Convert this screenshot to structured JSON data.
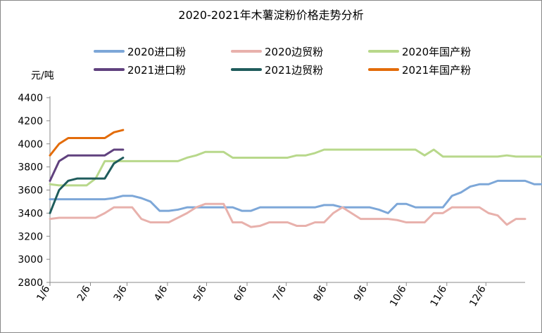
{
  "chart_data": {
    "type": "line",
    "title": "2020-2021年木薯淀粉价格走势分析",
    "ylabel": "元/吨",
    "ylim": [
      2800,
      4400
    ],
    "yticks": [
      "2800",
      "3000",
      "3200",
      "3400",
      "3600",
      "3800",
      "4000",
      "4200",
      "4400"
    ],
    "x_range": [
      0,
      52
    ],
    "xticks": [
      {
        "label": "1/6",
        "pos": 0
      },
      {
        "label": "2/6",
        "pos": 4.43
      },
      {
        "label": "3/6",
        "pos": 8.43
      },
      {
        "label": "4/6",
        "pos": 12.86
      },
      {
        "label": "5/6",
        "pos": 17.14
      },
      {
        "label": "6/6",
        "pos": 21.57
      },
      {
        "label": "7/6",
        "pos": 25.86
      },
      {
        "label": "8/6",
        "pos": 30.29
      },
      {
        "label": "9/6",
        "pos": 34.71
      },
      {
        "label": "10/6",
        "pos": 39.0
      },
      {
        "label": "11/6",
        "pos": 43.43
      },
      {
        "label": "12/6",
        "pos": 47.71
      }
    ],
    "grid": false,
    "legend_position": "top",
    "series": [
      {
        "name": "2020进口粉",
        "color": "#7da7d8",
        "values": [
          3520,
          3520,
          3520,
          3520,
          3520,
          3520,
          3520,
          3530,
          3550,
          3550,
          3530,
          3500,
          3420,
          3420,
          3430,
          3450,
          3450,
          3450,
          3450,
          3450,
          3450,
          3420,
          3420,
          3450,
          3450,
          3450,
          3450,
          3450,
          3450,
          3450,
          3470,
          3470,
          3450,
          3450,
          3450,
          3450,
          3430,
          3400,
          3480,
          3480,
          3450,
          3450,
          3450,
          3450,
          3550,
          3580,
          3630,
          3650,
          3650,
          3680,
          3680,
          3680,
          3680,
          3650,
          3650
        ]
      },
      {
        "name": "2020边贸粉",
        "color": "#e8b1ac",
        "values": [
          3350,
          3360,
          3360,
          3360,
          3360,
          3360,
          3400,
          3450,
          3450,
          3450,
          3350,
          3320,
          3320,
          3320,
          3360,
          3400,
          3450,
          3480,
          3480,
          3480,
          3320,
          3320,
          3280,
          3290,
          3320,
          3320,
          3320,
          3290,
          3290,
          3320,
          3320,
          3400,
          3450,
          3400,
          3350,
          3350,
          3350,
          3350,
          3340,
          3320,
          3320,
          3320,
          3400,
          3400,
          3450,
          3450,
          3450,
          3450,
          3400,
          3380,
          3300,
          3350,
          3350
        ]
      },
      {
        "name": "2020年国产粉",
        "color": "#b8d88b",
        "values": [
          3650,
          3640,
          3640,
          3640,
          3640,
          3700,
          3850,
          3850,
          3850,
          3850,
          3850,
          3850,
          3850,
          3850,
          3850,
          3880,
          3900,
          3930,
          3930,
          3930,
          3880,
          3880,
          3880,
          3880,
          3880,
          3880,
          3880,
          3900,
          3900,
          3920,
          3950,
          3950,
          3950,
          3950,
          3950,
          3950,
          3950,
          3950,
          3950,
          3950,
          3950,
          3900,
          3950,
          3890,
          3890,
          3890,
          3890,
          3890,
          3890,
          3890,
          3900,
          3890,
          3890,
          3890,
          3890
        ]
      },
      {
        "name": "2021进口粉",
        "color": "#60417e",
        "values": [
          3680,
          3850,
          3900,
          3900,
          3900,
          3900,
          3900,
          3950,
          3950
        ]
      },
      {
        "name": "2021边贸粉",
        "color": "#1f5c5c",
        "values": [
          3400,
          3600,
          3680,
          3700,
          3700,
          3700,
          3700,
          3830,
          3880
        ]
      },
      {
        "name": "2021年国产粉",
        "color": "#e36c0a",
        "values": [
          3900,
          4000,
          4050,
          4050,
          4050,
          4050,
          4050,
          4100,
          4120
        ]
      }
    ]
  }
}
